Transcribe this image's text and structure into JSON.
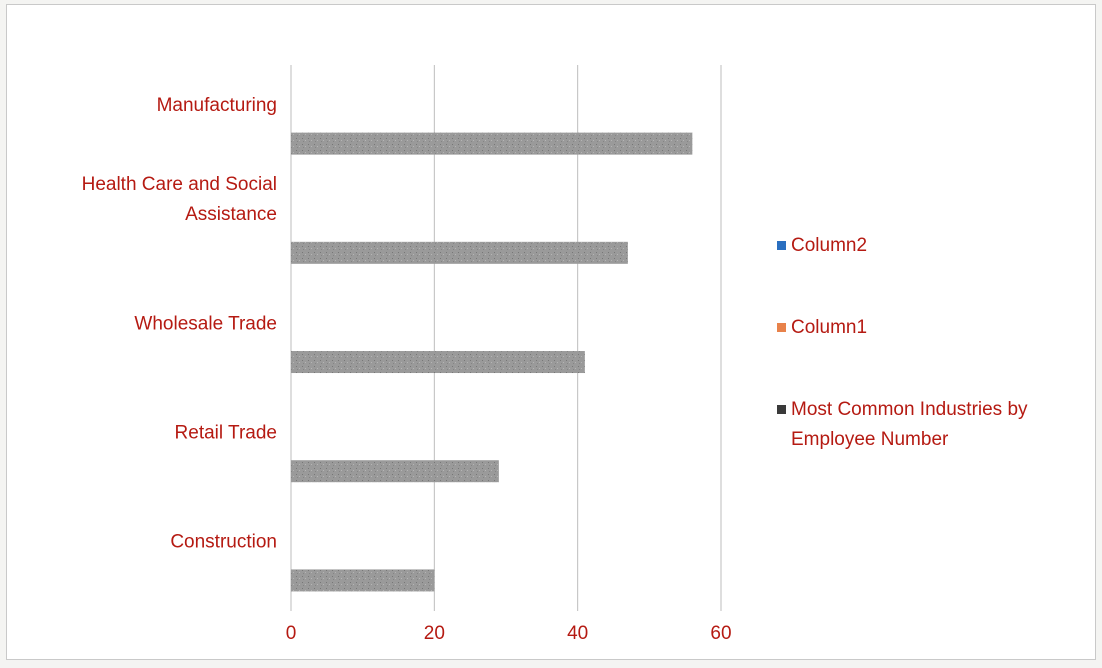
{
  "chart_data": {
    "type": "bar",
    "orientation": "horizontal",
    "categories": [
      "Construction",
      "Retail Trade",
      "Wholesale Trade",
      "Health Care and Social Assistance",
      "Manufacturing"
    ],
    "category_label_lines": [
      [
        "Construction"
      ],
      [
        "Retail Trade"
      ],
      [
        "Wholesale Trade"
      ],
      [
        "Health Care and Social",
        "Assistance"
      ],
      [
        "Manufacturing"
      ]
    ],
    "series": [
      {
        "name": "Most Common Industries by Employee Number",
        "values": [
          20,
          29,
          41,
          47,
          56
        ],
        "color": "#9a9a9a"
      },
      {
        "name": "Column1",
        "values": [
          0,
          0,
          0,
          0,
          0
        ],
        "color": "#e8824a"
      },
      {
        "name": "Column2",
        "values": [
          0,
          0,
          0,
          0,
          0
        ],
        "color": "#2a6fc0"
      }
    ],
    "legend": {
      "position": "right",
      "entries": [
        {
          "lines": [
            "Column2"
          ],
          "color": "#2a6fc0"
        },
        {
          "lines": [
            "Column1"
          ],
          "color": "#e8824a"
        },
        {
          "lines": [
            "Most Common Industries by",
            "Employee Number"
          ],
          "color": "#3a3a3a"
        }
      ]
    },
    "xlim": [
      0,
      60
    ],
    "xticks": [
      0,
      20,
      40,
      60
    ],
    "xtick_labels": [
      "0",
      "20",
      "40",
      "60"
    ],
    "grid": true,
    "title": "",
    "xlabel": "",
    "ylabel": "",
    "label_color": "#b51a12",
    "grid_color": "#bdbdbd"
  }
}
